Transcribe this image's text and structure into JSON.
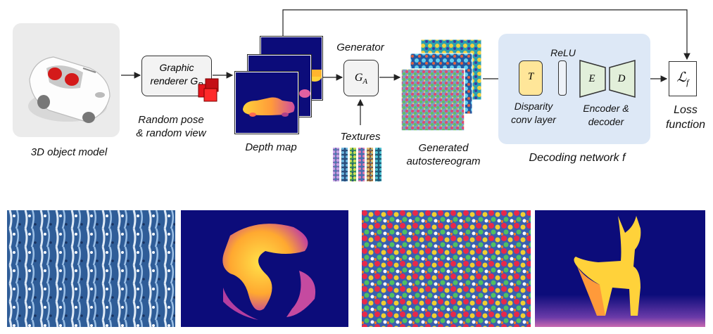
{
  "pipeline": {
    "object_model_label": "3D object model",
    "renderer_label_line1": "Graphic",
    "renderer_label_line2": "renderer G",
    "renderer_subscript": "R",
    "random_pose_line1": "Random pose",
    "random_pose_line2": "& random view",
    "depth_map_label": "Depth map",
    "generator_label": "Generator",
    "generator_symbol": "G",
    "generator_subscript": "A",
    "textures_label": "Textures",
    "generated_line1": "Generated",
    "generated_line2": "autostereogram",
    "relu_label": "ReLU",
    "disparity_symbol": "T",
    "disparity_line1": "Disparity",
    "disparity_line2": "conv layer",
    "encoder_symbol": "E",
    "decoder_symbol": "D",
    "encdec_line1": "Encoder &",
    "encdec_line2": "decoder",
    "decoding_network_label": "Decoding network f",
    "loss_symbol": "ℒ",
    "loss_subscript": "f",
    "loss_line1": "Loss",
    "loss_line2": "function"
  },
  "colors": {
    "depth_background": "#0c0c7a",
    "depth_foreground": "#ffd23a",
    "decoding_panel": "#dde8f6",
    "disparity_fill": "#ffe699",
    "encdec_fill": "#e2efda",
    "renderer_cube": "#e8141c"
  }
}
